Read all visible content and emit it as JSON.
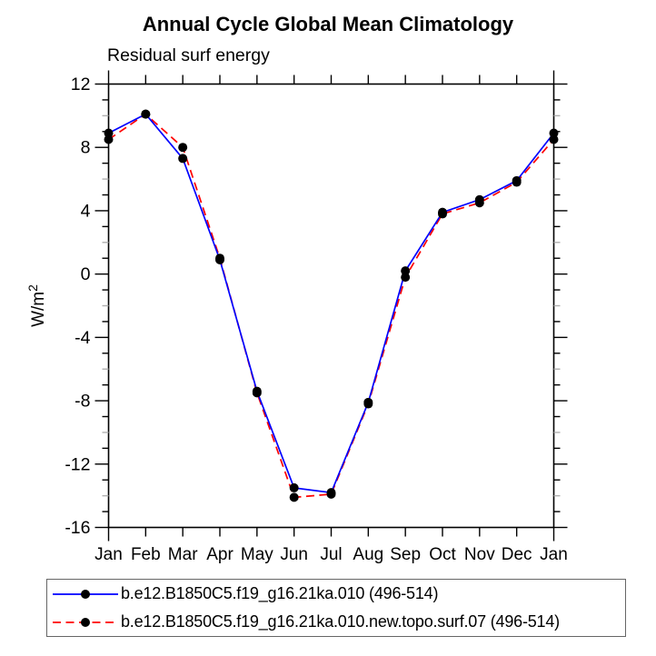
{
  "title": "Annual Cycle Global Mean Climatology",
  "subtitle": "Residual surf energy",
  "y_axis": {
    "label_base": "W/m",
    "label_sup": "2"
  },
  "colors": {
    "axis": "#000000",
    "minor_tick_mid": "#b0b0b0",
    "series1_line": "#0000ff",
    "series2_line": "#ff0000",
    "marker": "#000000",
    "legend_border": "#666666"
  },
  "chart_data": {
    "type": "line",
    "title": "Annual Cycle Global Mean Climatology",
    "subtitle": "Residual surf energy",
    "xlabel": "",
    "ylabel": "W/m^2",
    "categories": [
      "Jan",
      "Feb",
      "Mar",
      "Apr",
      "May",
      "Jun",
      "Jul",
      "Aug",
      "Sep",
      "Oct",
      "Nov",
      "Dec",
      "Jan"
    ],
    "series": [
      {
        "name": "b.e12.B1850C5.f19_g16.21ka.010 (496-514)",
        "color": "#0000ff",
        "line_style": "solid",
        "marker": "filled-circle",
        "marker_color": "#000000",
        "values": [
          8.9,
          10.1,
          7.3,
          0.9,
          -7.4,
          -13.5,
          -13.8,
          -8.1,
          0.2,
          3.9,
          4.7,
          5.9,
          8.9
        ]
      },
      {
        "name": "b.e12.B1850C5.f19_g16.21ka.010.new.topo.surf.07 (496-514)",
        "color": "#ff0000",
        "line_style": "dashed",
        "marker": "filled-circle",
        "marker_color": "#000000",
        "values": [
          8.5,
          10.1,
          8.0,
          1.0,
          -7.5,
          -14.1,
          -13.9,
          -8.2,
          -0.2,
          3.8,
          4.5,
          5.8,
          8.5
        ]
      }
    ],
    "ylim": [
      -16,
      12
    ],
    "ytick_major_step": 4,
    "ytick_minor_step": 1,
    "xtick_labels_every_point": true,
    "grid": false,
    "legend_position": "bottom"
  }
}
